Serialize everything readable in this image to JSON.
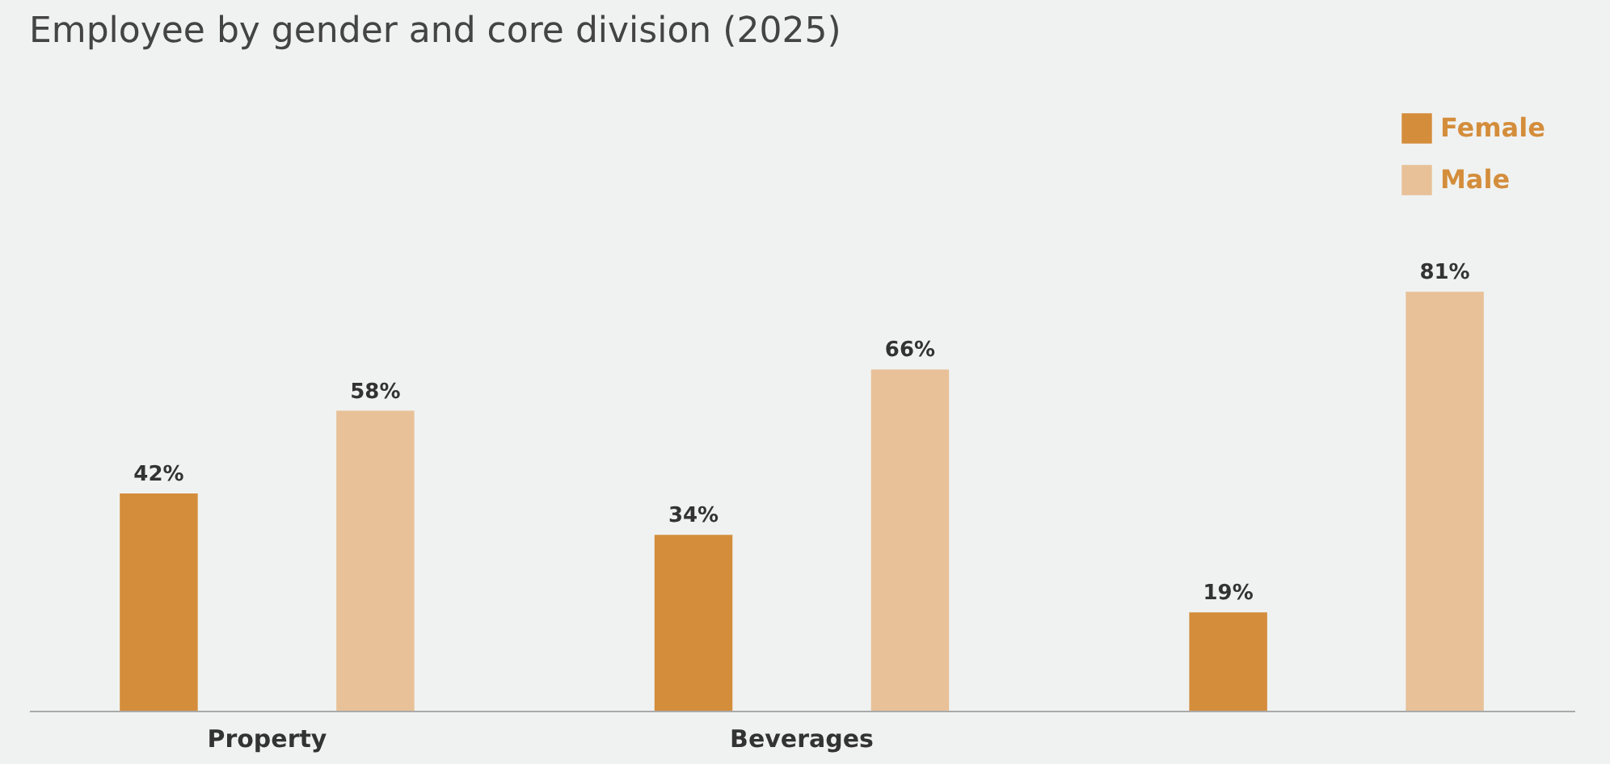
{
  "chart_data": {
    "type": "bar",
    "title": "Employee by gender and core division (2025)",
    "categories": [
      "Property",
      "Beverages",
      null
    ],
    "series": [
      {
        "name": "Female",
        "color": "#d48d3b",
        "values": [
          42,
          34,
          19
        ],
        "value_labels": [
          "42%",
          "34%",
          "19%"
        ]
      },
      {
        "name": "Male",
        "color": "#e8c198",
        "values": [
          58,
          66,
          81
        ],
        "value_labels": [
          "58%",
          "66%",
          "81%"
        ]
      }
    ],
    "legend": "top right",
    "grid": false
  }
}
